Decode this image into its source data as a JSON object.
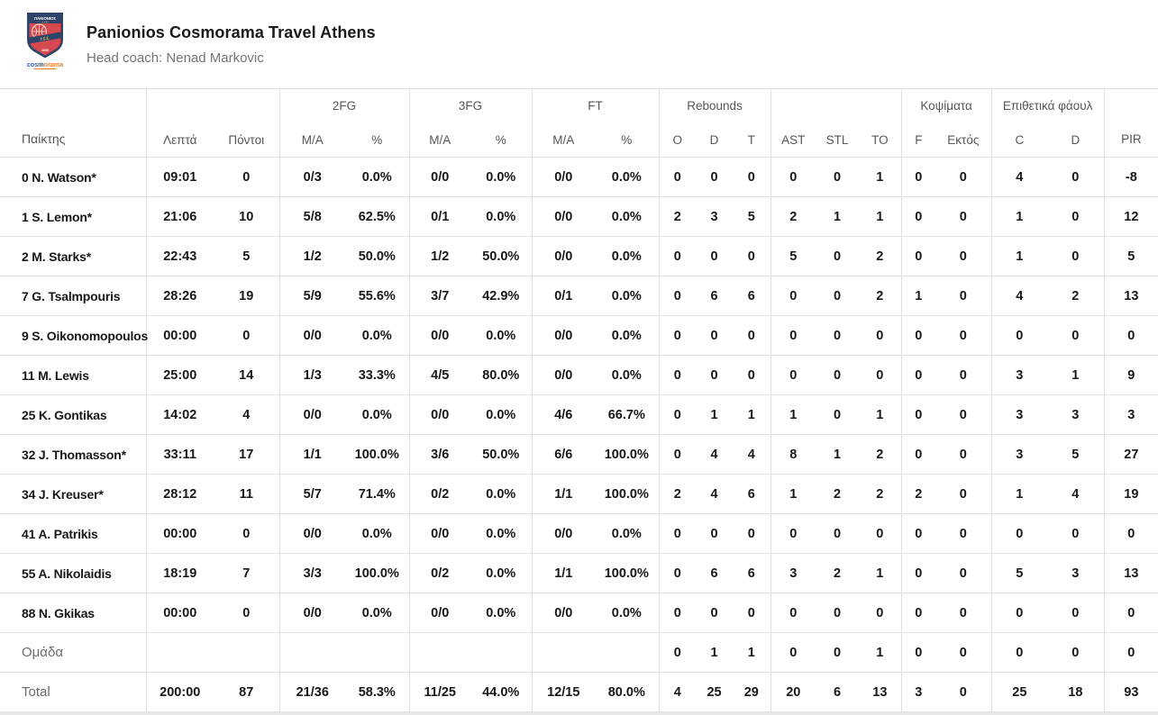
{
  "team": {
    "name": "Panionios Cosmorama Travel Athens",
    "head_coach": "Head coach: Nenad Markovic",
    "logo": {
      "name": "ΠΑΝΙΟΝΙΟΣ",
      "kae": "Κ.Α.Ε.",
      "gss": "Γ.Σ.Σ.",
      "year": "1890",
      "wordmark": {
        "part1": "cosm",
        "part2": "o",
        "part3": "rama"
      },
      "colors": {
        "navy": "#2f4468",
        "red": "#d6494f",
        "gold": "#f2c14e",
        "blue": "#2b5ba8",
        "orange": "#f07e26"
      }
    }
  },
  "table": {
    "header": {
      "player": "Παίκτης",
      "minutes": "Λεπτά",
      "points": "Πόντοι",
      "fg2": "2FG",
      "fg3": "3FG",
      "ft": "FT",
      "rebounds": "Rebounds",
      "blocks": "Κοψίματα",
      "off_fouls": "Επιθετικά φάουλ",
      "ma": "M/A",
      "pct": "%",
      "o": "O",
      "d": "D",
      "t": "T",
      "ast": "AST",
      "stl": "STL",
      "to": "TO",
      "f": "F",
      "ektos": "Εκτός",
      "c": "C",
      "pir": "PIR"
    },
    "rows": [
      {
        "player": "0 N. Watson*",
        "cells": [
          "09:01",
          "0",
          "0/3",
          "0.0%",
          "0/0",
          "0.0%",
          "0/0",
          "0.0%",
          "0",
          "0",
          "0",
          "0",
          "0",
          "1",
          "0",
          "0",
          "4",
          "0",
          "-8"
        ]
      },
      {
        "player": "1 S. Lemon*",
        "cells": [
          "21:06",
          "10",
          "5/8",
          "62.5%",
          "0/1",
          "0.0%",
          "0/0",
          "0.0%",
          "2",
          "3",
          "5",
          "2",
          "1",
          "1",
          "0",
          "0",
          "1",
          "0",
          "12"
        ]
      },
      {
        "player": "2 M. Starks*",
        "cells": [
          "22:43",
          "5",
          "1/2",
          "50.0%",
          "1/2",
          "50.0%",
          "0/0",
          "0.0%",
          "0",
          "0",
          "0",
          "5",
          "0",
          "2",
          "0",
          "0",
          "1",
          "0",
          "5"
        ]
      },
      {
        "player": "7 G. Tsalmpouris",
        "cells": [
          "28:26",
          "19",
          "5/9",
          "55.6%",
          "3/7",
          "42.9%",
          "0/1",
          "0.0%",
          "0",
          "6",
          "6",
          "0",
          "0",
          "2",
          "1",
          "0",
          "4",
          "2",
          "13"
        ]
      },
      {
        "player": "9 S. Oikonomopoulos",
        "cells": [
          "00:00",
          "0",
          "0/0",
          "0.0%",
          "0/0",
          "0.0%",
          "0/0",
          "0.0%",
          "0",
          "0",
          "0",
          "0",
          "0",
          "0",
          "0",
          "0",
          "0",
          "0",
          "0"
        ]
      },
      {
        "player": "11 M. Lewis",
        "cells": [
          "25:00",
          "14",
          "1/3",
          "33.3%",
          "4/5",
          "80.0%",
          "0/0",
          "0.0%",
          "0",
          "0",
          "0",
          "0",
          "0",
          "0",
          "0",
          "0",
          "3",
          "1",
          "9"
        ]
      },
      {
        "player": "25 K. Gontikas",
        "cells": [
          "14:02",
          "4",
          "0/0",
          "0.0%",
          "0/0",
          "0.0%",
          "4/6",
          "66.7%",
          "0",
          "1",
          "1",
          "1",
          "0",
          "1",
          "0",
          "0",
          "3",
          "3",
          "3"
        ]
      },
      {
        "player": "32 J. Thomasson*",
        "cells": [
          "33:11",
          "17",
          "1/1",
          "100.0%",
          "3/6",
          "50.0%",
          "6/6",
          "100.0%",
          "0",
          "4",
          "4",
          "8",
          "1",
          "2",
          "0",
          "0",
          "3",
          "5",
          "27"
        ]
      },
      {
        "player": "34 J. Kreuser*",
        "cells": [
          "28:12",
          "11",
          "5/7",
          "71.4%",
          "0/2",
          "0.0%",
          "1/1",
          "100.0%",
          "2",
          "4",
          "6",
          "1",
          "2",
          "2",
          "2",
          "0",
          "1",
          "4",
          "19"
        ]
      },
      {
        "player": "41 A. Patrikis",
        "cells": [
          "00:00",
          "0",
          "0/0",
          "0.0%",
          "0/0",
          "0.0%",
          "0/0",
          "0.0%",
          "0",
          "0",
          "0",
          "0",
          "0",
          "0",
          "0",
          "0",
          "0",
          "0",
          "0"
        ]
      },
      {
        "player": "55 A. Nikolaidis",
        "cells": [
          "18:19",
          "7",
          "3/3",
          "100.0%",
          "0/2",
          "0.0%",
          "1/1",
          "100.0%",
          "0",
          "6",
          "6",
          "3",
          "2",
          "1",
          "0",
          "0",
          "5",
          "3",
          "13"
        ]
      },
      {
        "player": "88 N. Gkikas",
        "cells": [
          "00:00",
          "0",
          "0/0",
          "0.0%",
          "0/0",
          "0.0%",
          "0/0",
          "0.0%",
          "0",
          "0",
          "0",
          "0",
          "0",
          "0",
          "0",
          "0",
          "0",
          "0",
          "0"
        ]
      }
    ],
    "team_row": {
      "label": "Ομάδα",
      "cells": [
        "",
        "",
        "",
        "",
        "",
        "",
        "",
        "",
        "0",
        "1",
        "1",
        "0",
        "0",
        "1",
        "0",
        "0",
        "0",
        "0",
        "0"
      ]
    },
    "total_row": {
      "label": "Total",
      "cells": [
        "200:00",
        "87",
        "21/36",
        "58.3%",
        "11/25",
        "44.0%",
        "12/15",
        "80.0%",
        "4",
        "25",
        "29",
        "20",
        "6",
        "13",
        "3",
        "0",
        "25",
        "18",
        "93"
      ]
    }
  }
}
